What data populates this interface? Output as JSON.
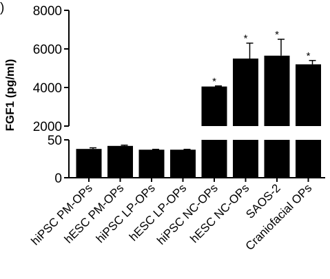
{
  "panel_letter": ")",
  "chart_data": {
    "type": "bar",
    "ylabel": "FGF1 (pg/ml)",
    "categories": [
      "hiPSC PM-OPs",
      "hESC PM-OPs",
      "hiPSC LP-OPs",
      "hESC LP-OPs",
      "hiPSC NC-OPs",
      "hESC NC-OPs",
      "SAOS-2",
      "Craniofacial OPs"
    ],
    "values": [
      38,
      42,
      37,
      37,
      4050,
      5500,
      5650,
      5200
    ],
    "errors": [
      1.5,
      1,
      0.5,
      0.5,
      30,
      800,
      850,
      200
    ],
    "significance": [
      "",
      "",
      "",
      "",
      "*",
      "*",
      "*",
      "*"
    ],
    "y_axis": {
      "broken": true,
      "lower_segment": {
        "range": [
          0,
          50
        ],
        "ticks": [
          0,
          50
        ]
      },
      "upper_segment": {
        "range": [
          2000,
          8000
        ],
        "ticks": [
          2000,
          4000,
          6000,
          8000
        ]
      }
    },
    "colors": {
      "bar": "#000000",
      "axis": "#000000",
      "background": "#ffffff"
    },
    "grid": false
  }
}
